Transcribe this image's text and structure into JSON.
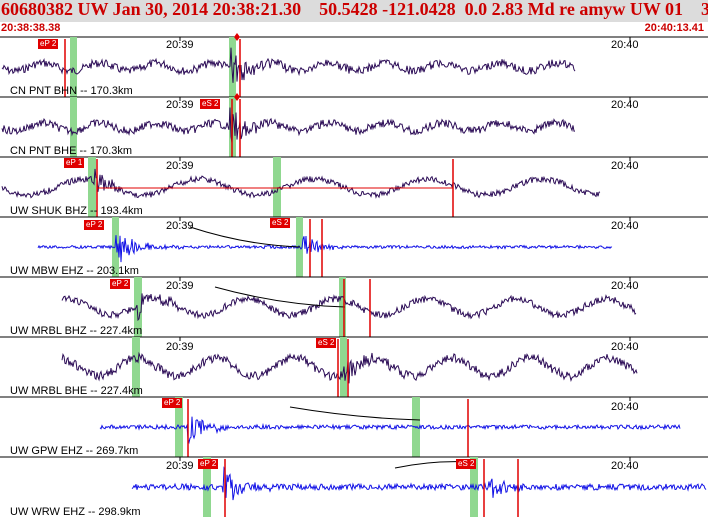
{
  "title": "60680382 UW Jan 30, 2014 20:38:21.30    50.5428 -121.0428  0.0 2.83 Md re amyw UW 01    3",
  "time_start": "20:38:38.38",
  "time_end": "20:40:13.41",
  "tick_labels": [
    "20:39",
    "20:40"
  ],
  "colors": {
    "short_period": "#1010e6",
    "broadband": "#2a0a55",
    "pick": "#e00000",
    "green_band": "#90d890",
    "title_bg": "#dcdcdc",
    "title_text": "#cc0000"
  },
  "traces": [
    {
      "label": "CN PNT BHN -- 170.3km",
      "type": "broadband",
      "picks": [
        "eP 2"
      ]
    },
    {
      "label": "CN PNT BHE -- 170.3km",
      "type": "broadband",
      "picks": [
        "eS 2"
      ]
    },
    {
      "label": "UW SHUK BHZ -- 193.4km",
      "type": "broadband",
      "picks": [
        "eP 1"
      ]
    },
    {
      "label": "UW MBW EHZ -- 203.1km",
      "type": "short_period",
      "picks": [
        "eP 2",
        "eS 2"
      ]
    },
    {
      "label": "UW MRBL BHZ -- 227.4km",
      "type": "broadband",
      "picks": [
        "eP 2"
      ]
    },
    {
      "label": "UW MRBL BHE -- 227.4km",
      "type": "broadband",
      "picks": [
        "eS 2"
      ]
    },
    {
      "label": "UW GPW EHZ -- 269.7km",
      "type": "short_period",
      "picks": [
        "eP 2"
      ]
    },
    {
      "label": "UW WRW EHZ -- 298.9km",
      "type": "short_period",
      "picks": [
        "eP 2",
        "eS 2"
      ]
    }
  ]
}
